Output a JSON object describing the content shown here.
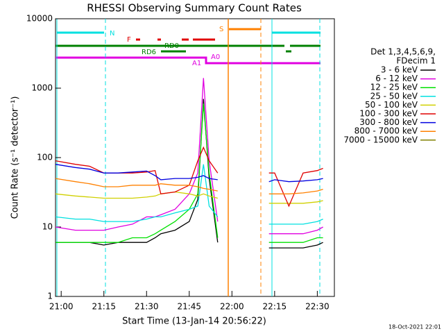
{
  "chart_data": {
    "type": "line",
    "title": "RHESSI Observing Summary Count Rates",
    "x_label": "Start Time (13-Jan-14 20:56:22)",
    "y_label": "Count Rate (s⁻¹ detector⁻¹)",
    "footer": "18-Oct-2021 22:01",
    "legend_header": [
      "Det 1,3,4,5,6,9,",
      "FDecim 1"
    ],
    "y_log": true,
    "ylim": [
      1,
      10000
    ],
    "yticks": [
      1,
      10,
      100,
      1000,
      10000
    ],
    "xlim": [
      "20:58",
      "22:36"
    ],
    "xticks": [
      {
        "value": "21:00",
        "label": "21:00"
      },
      {
        "value": "21:15",
        "label": "21:15"
      },
      {
        "value": "21:30",
        "label": "21:30"
      },
      {
        "value": "21:45",
        "label": "21:45"
      },
      {
        "value": "22:00",
        "label": "22:00"
      },
      {
        "value": "22:15",
        "label": "22:15"
      },
      {
        "value": "22:30",
        "label": "22:30"
      }
    ],
    "annotations": [
      "N",
      "F",
      "S",
      "RD0",
      "RD6",
      "A1",
      "A0"
    ],
    "x": [
      "20:58",
      "21:05",
      "21:10",
      "21:15",
      "21:20",
      "21:25",
      "21:30",
      "21:33",
      "21:35",
      "21:40",
      "21:45",
      "21:48",
      "21:50",
      "21:52",
      "21:55",
      "22:00",
      "22:05",
      "22:10",
      "22:13",
      "22:15",
      "22:20",
      "22:25",
      "22:30",
      "22:32"
    ],
    "series": [
      {
        "name": "3 - 6 keV",
        "color": "#000000",
        "values": [
          6,
          6,
          6,
          5.5,
          6,
          6,
          6,
          7,
          8,
          9,
          12,
          25,
          700,
          50,
          6,
          null,
          null,
          null,
          5,
          5,
          5,
          5,
          5.5,
          6
        ]
      },
      {
        "name": "6 - 12 keV",
        "color": "#e000e0",
        "values": [
          10,
          9,
          9,
          9,
          10,
          11,
          14,
          14,
          15,
          18,
          30,
          60,
          1400,
          90,
          12,
          null,
          null,
          null,
          8,
          8,
          8,
          8,
          9,
          10
        ]
      },
      {
        "name": "12 - 25 keV",
        "color": "#00e000",
        "values": [
          6,
          6,
          6,
          6,
          6,
          7,
          7,
          8,
          9,
          12,
          18,
          30,
          600,
          60,
          7,
          null,
          null,
          null,
          6,
          6,
          6,
          6,
          7,
          7
        ]
      },
      {
        "name": "25 - 50 keV",
        "color": "#00e0e0",
        "values": [
          14,
          13,
          13,
          12,
          12,
          12,
          13,
          14,
          14,
          16,
          18,
          20,
          80,
          20,
          14,
          null,
          null,
          null,
          11,
          11,
          11,
          11,
          12,
          13
        ]
      },
      {
        "name": "50 - 100 keV",
        "color": "#d0d000",
        "values": [
          30,
          28,
          27,
          26,
          26,
          26,
          27,
          28,
          30,
          32,
          30,
          28,
          30,
          28,
          26,
          null,
          null,
          null,
          22,
          22,
          22,
          22,
          23,
          24
        ]
      },
      {
        "name": "100 - 300 keV",
        "color": "#e00000",
        "values": [
          90,
          80,
          75,
          60,
          60,
          60,
          62,
          65,
          30,
          32,
          40,
          90,
          140,
          90,
          60,
          null,
          null,
          null,
          60,
          60,
          20,
          60,
          65,
          70
        ]
      },
      {
        "name": "300 - 800 keV",
        "color": "#0000e0",
        "values": [
          80,
          72,
          68,
          60,
          60,
          62,
          64,
          55,
          48,
          50,
          50,
          52,
          55,
          50,
          48,
          null,
          null,
          null,
          45,
          48,
          45,
          46,
          48,
          50
        ]
      },
      {
        "name": "800 - 7000 keV",
        "color": "#ff8000",
        "values": [
          50,
          45,
          42,
          38,
          38,
          40,
          40,
          40,
          42,
          40,
          40,
          38,
          36,
          35,
          33,
          null,
          null,
          null,
          30,
          30,
          30,
          31,
          33,
          35
        ]
      },
      {
        "name": "7000 - 15000 keV",
        "color": "#808000",
        "values": [
          null,
          null,
          null,
          null,
          null,
          null,
          null,
          null,
          null,
          null,
          null,
          null,
          null,
          null,
          null,
          null,
          null,
          null,
          null,
          null,
          null,
          null,
          null,
          null
        ]
      }
    ]
  }
}
